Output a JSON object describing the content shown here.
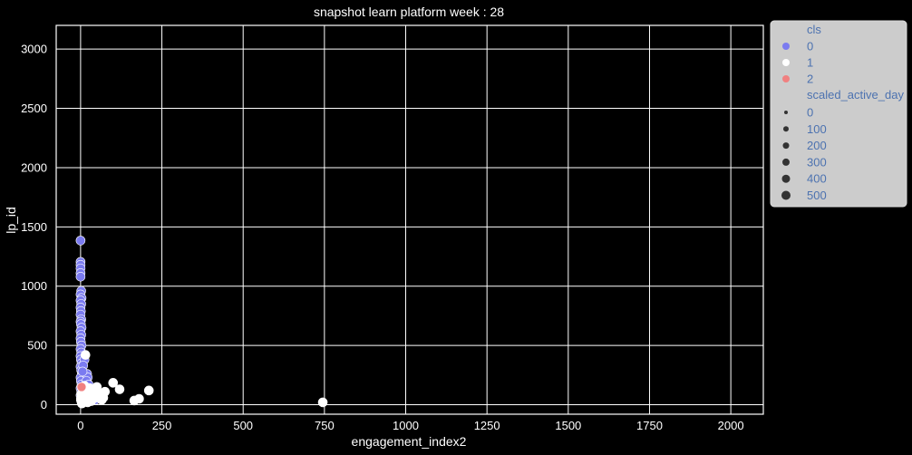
{
  "chart_data": {
    "type": "scatter",
    "title": "snapshot learn platform week : 28",
    "xlabel": "engagement_index2",
    "ylabel": "lp_id",
    "xlim": [
      -75,
      2100
    ],
    "ylim": [
      -80,
      3200
    ],
    "xticks": [
      0,
      250,
      500,
      750,
      1000,
      1250,
      1500,
      1750,
      2000
    ],
    "yticks": [
      0,
      500,
      1000,
      1500,
      2000,
      2500,
      3000
    ],
    "grid": true,
    "background": "#000000",
    "grid_color": "#ffffff",
    "legend_position": "outside-right-top",
    "legend": {
      "hue_title": "cls",
      "hue_entries": [
        {
          "label": "0",
          "color": "#7b7bf0"
        },
        {
          "label": "1",
          "color": "#ffffff"
        },
        {
          "label": "2",
          "color": "#f08080"
        }
      ],
      "size_title": "scaled_active_day",
      "size_entries": [
        "0",
        "100",
        "200",
        "300",
        "400",
        "500"
      ]
    },
    "series": [
      {
        "name": "0",
        "color": "#7b7bf0",
        "points": [
          {
            "x": 0,
            "y": 1385
          },
          {
            "x": 0,
            "y": 1205
          },
          {
            "x": 0,
            "y": 1180
          },
          {
            "x": 0,
            "y": 1150
          },
          {
            "x": 0,
            "y": 1110
          },
          {
            "x": 0,
            "y": 1080
          },
          {
            "x": 2,
            "y": 960
          },
          {
            "x": 0,
            "y": 930
          },
          {
            "x": 3,
            "y": 900
          },
          {
            "x": 0,
            "y": 880
          },
          {
            "x": 2,
            "y": 850
          },
          {
            "x": 0,
            "y": 820
          },
          {
            "x": 1,
            "y": 790
          },
          {
            "x": 0,
            "y": 760
          },
          {
            "x": 2,
            "y": 720
          },
          {
            "x": 0,
            "y": 700
          },
          {
            "x": 1,
            "y": 680
          },
          {
            "x": 3,
            "y": 650
          },
          {
            "x": 0,
            "y": 620
          },
          {
            "x": 2,
            "y": 590
          },
          {
            "x": 0,
            "y": 560
          },
          {
            "x": 1,
            "y": 530
          },
          {
            "x": 3,
            "y": 500
          },
          {
            "x": 0,
            "y": 470
          },
          {
            "x": 2,
            "y": 440
          },
          {
            "x": 0,
            "y": 410
          },
          {
            "x": 1,
            "y": 380
          },
          {
            "x": 3,
            "y": 350
          },
          {
            "x": 0,
            "y": 320
          },
          {
            "x": 2,
            "y": 290
          },
          {
            "x": 4,
            "y": 260
          },
          {
            "x": 0,
            "y": 230
          },
          {
            "x": 1,
            "y": 200
          },
          {
            "x": 3,
            "y": 170
          },
          {
            "x": 0,
            "y": 140
          },
          {
            "x": 2,
            "y": 110
          },
          {
            "x": 0,
            "y": 80
          },
          {
            "x": 1,
            "y": 50
          },
          {
            "x": 3,
            "y": 20
          },
          {
            "x": 20,
            "y": 260
          },
          {
            "x": 22,
            "y": 230
          },
          {
            "x": 18,
            "y": 200
          },
          {
            "x": 25,
            "y": 170
          },
          {
            "x": 15,
            "y": 150
          },
          {
            "x": 45,
            "y": 40
          },
          {
            "x": 12,
            "y": 380
          },
          {
            "x": 8,
            "y": 330
          },
          {
            "x": 6,
            "y": 280
          },
          {
            "x": 10,
            "y": 120
          },
          {
            "x": 5,
            "y": 60
          },
          {
            "x": 14,
            "y": 90
          },
          {
            "x": 28,
            "y": 60
          }
        ]
      },
      {
        "name": "1",
        "color": "#ffffff",
        "points": [
          {
            "x": 745,
            "y": 20
          },
          {
            "x": 210,
            "y": 120
          },
          {
            "x": 180,
            "y": 50
          },
          {
            "x": 165,
            "y": 35
          },
          {
            "x": 100,
            "y": 185
          },
          {
            "x": 120,
            "y": 130
          },
          {
            "x": 75,
            "y": 110
          },
          {
            "x": 70,
            "y": 60
          },
          {
            "x": 65,
            "y": 40
          },
          {
            "x": 55,
            "y": 100
          },
          {
            "x": 50,
            "y": 150
          },
          {
            "x": 45,
            "y": 130
          },
          {
            "x": 40,
            "y": 90
          },
          {
            "x": 35,
            "y": 60
          },
          {
            "x": 30,
            "y": 110
          },
          {
            "x": 25,
            "y": 80
          },
          {
            "x": 20,
            "y": 40
          },
          {
            "x": 18,
            "y": 120
          },
          {
            "x": 15,
            "y": 420
          },
          {
            "x": 12,
            "y": 160
          },
          {
            "x": 10,
            "y": 60
          },
          {
            "x": 8,
            "y": 100
          },
          {
            "x": 6,
            "y": 30
          },
          {
            "x": 5,
            "y": 140
          },
          {
            "x": 4,
            "y": 10
          },
          {
            "x": 3,
            "y": 70
          },
          {
            "x": 2,
            "y": 90
          },
          {
            "x": 1,
            "y": 40
          },
          {
            "x": 9,
            "y": 20
          },
          {
            "x": 16,
            "y": 70
          },
          {
            "x": 22,
            "y": 20
          },
          {
            "x": 28,
            "y": 140
          },
          {
            "x": 33,
            "y": 30
          },
          {
            "x": 38,
            "y": 120
          },
          {
            "x": 48,
            "y": 60
          },
          {
            "x": 58,
            "y": 80
          }
        ]
      },
      {
        "name": "2",
        "color": "#f08080",
        "points": [
          {
            "x": 3,
            "y": 150
          }
        ]
      }
    ]
  }
}
